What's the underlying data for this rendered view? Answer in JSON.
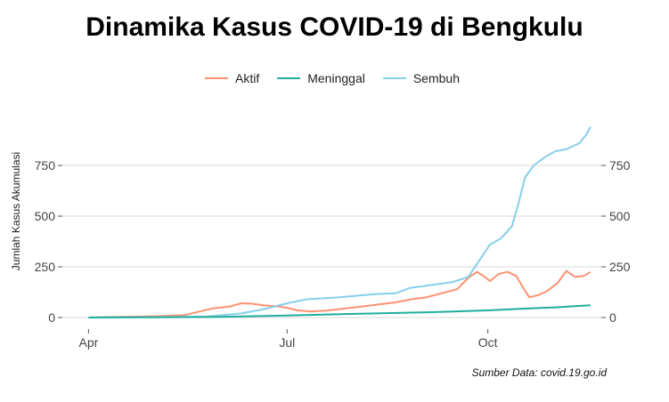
{
  "title": "Dinamika Kasus COVID-19 di Bengkulu",
  "caption": "Sumber Data: covid.19.go.id",
  "chart_data": {
    "type": "line",
    "title": "Dinamika Kasus COVID-19 di Bengkulu",
    "ylabel": "Jumlah Kasus Akumulasi",
    "xlabel": "",
    "x_ticks": [
      {
        "label": "Apr",
        "date": "2020-04-01"
      },
      {
        "label": "Jul",
        "date": "2020-07-01"
      },
      {
        "label": "Oct",
        "date": "2020-10-01"
      }
    ],
    "y_ticks": [
      0,
      250,
      500,
      750
    ],
    "ylim": [
      0,
      950
    ],
    "xlim": [
      "2020-03-20",
      "2020-11-22"
    ],
    "grid": true,
    "legend": "top",
    "series": [
      {
        "name": "Aktif",
        "color": "#FC9272",
        "points": [
          [
            "2020-04-01",
            0
          ],
          [
            "2020-04-15",
            3
          ],
          [
            "2020-04-25",
            5
          ],
          [
            "2020-05-05",
            8
          ],
          [
            "2020-05-15",
            12
          ],
          [
            "2020-05-22",
            30
          ],
          [
            "2020-05-28",
            45
          ],
          [
            "2020-06-05",
            55
          ],
          [
            "2020-06-10",
            70
          ],
          [
            "2020-06-15",
            68
          ],
          [
            "2020-06-20",
            60
          ],
          [
            "2020-06-27",
            55
          ],
          [
            "2020-07-01",
            48
          ],
          [
            "2020-07-06",
            35
          ],
          [
            "2020-07-12",
            30
          ],
          [
            "2020-07-20",
            35
          ],
          [
            "2020-07-28",
            45
          ],
          [
            "2020-08-05",
            55
          ],
          [
            "2020-08-12",
            65
          ],
          [
            "2020-08-20",
            75
          ],
          [
            "2020-08-27",
            90
          ],
          [
            "2020-09-03",
            100
          ],
          [
            "2020-09-10",
            120
          ],
          [
            "2020-09-17",
            140
          ],
          [
            "2020-09-22",
            195
          ],
          [
            "2020-09-26",
            225
          ],
          [
            "2020-09-29",
            205
          ],
          [
            "2020-10-02",
            180
          ],
          [
            "2020-10-06",
            215
          ],
          [
            "2020-10-10",
            225
          ],
          [
            "2020-10-14",
            205
          ],
          [
            "2020-10-17",
            150
          ],
          [
            "2020-10-20",
            100
          ],
          [
            "2020-10-24",
            110
          ],
          [
            "2020-10-28",
            130
          ],
          [
            "2020-11-02",
            170
          ],
          [
            "2020-11-06",
            230
          ],
          [
            "2020-11-10",
            200
          ],
          [
            "2020-11-14",
            205
          ],
          [
            "2020-11-17",
            225
          ]
        ]
      },
      {
        "name": "Meninggal",
        "color": "#1FAE9B",
        "points": [
          [
            "2020-04-01",
            0
          ],
          [
            "2020-05-01",
            1
          ],
          [
            "2020-06-01",
            3
          ],
          [
            "2020-07-01",
            10
          ],
          [
            "2020-08-01",
            18
          ],
          [
            "2020-09-01",
            25
          ],
          [
            "2020-10-01",
            35
          ],
          [
            "2020-10-20",
            45
          ],
          [
            "2020-11-01",
            50
          ],
          [
            "2020-11-17",
            60
          ]
        ]
      },
      {
        "name": "Sembuh",
        "color": "#87CEEB",
        "points": [
          [
            "2020-04-01",
            0
          ],
          [
            "2020-05-01",
            2
          ],
          [
            "2020-05-25",
            5
          ],
          [
            "2020-06-10",
            20
          ],
          [
            "2020-06-20",
            40
          ],
          [
            "2020-07-01",
            70
          ],
          [
            "2020-07-10",
            90
          ],
          [
            "2020-07-25",
            100
          ],
          [
            "2020-08-10",
            115
          ],
          [
            "2020-08-20",
            120
          ],
          [
            "2020-08-26",
            145
          ],
          [
            "2020-09-05",
            160
          ],
          [
            "2020-09-15",
            175
          ],
          [
            "2020-09-22",
            200
          ],
          [
            "2020-09-27",
            280
          ],
          [
            "2020-10-02",
            360
          ],
          [
            "2020-10-07",
            390
          ],
          [
            "2020-10-12",
            450
          ],
          [
            "2020-10-15",
            560
          ],
          [
            "2020-10-18",
            690
          ],
          [
            "2020-10-22",
            750
          ],
          [
            "2020-10-27",
            790
          ],
          [
            "2020-11-01",
            820
          ],
          [
            "2020-11-06",
            830
          ],
          [
            "2020-11-12",
            860
          ],
          [
            "2020-11-15",
            900
          ],
          [
            "2020-11-17",
            940
          ]
        ]
      }
    ]
  }
}
